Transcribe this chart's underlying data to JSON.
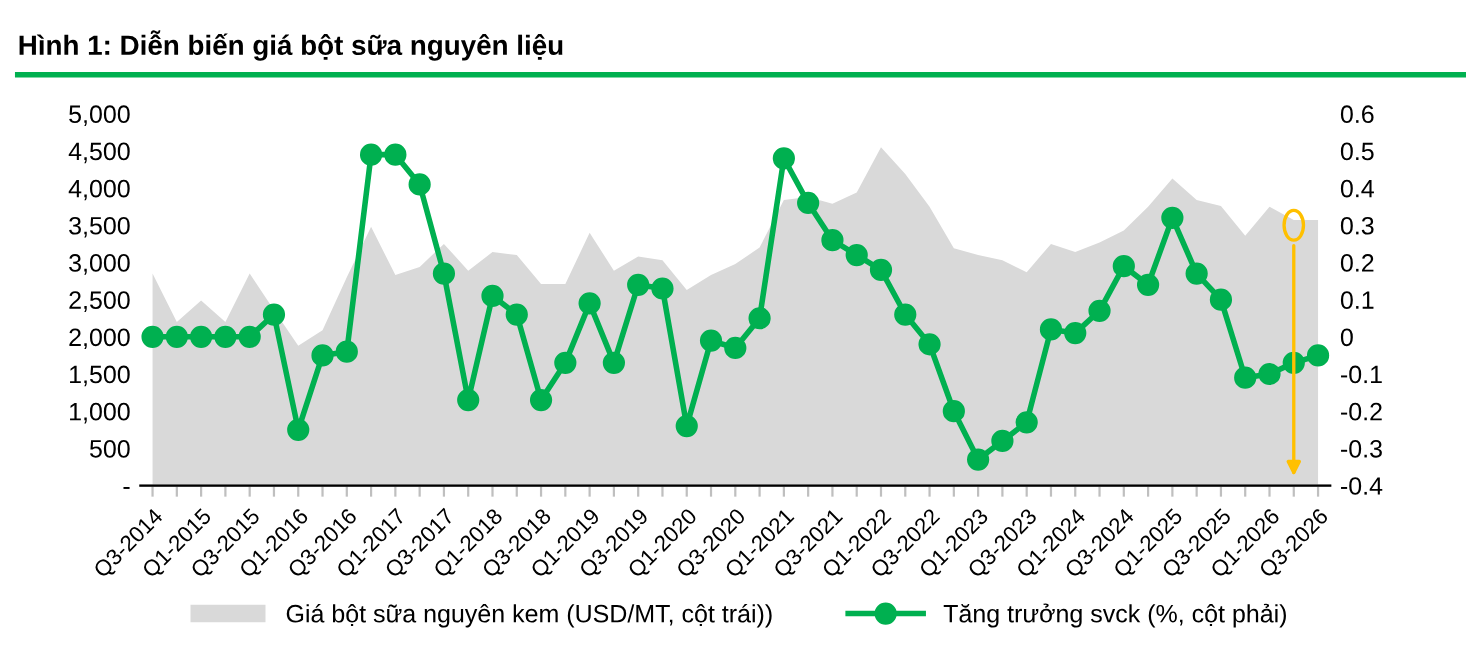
{
  "chart_data": {
    "type": "area",
    "title": "Hình 1: Diễn biến giá bột sữa nguyên liệu",
    "categories": [
      "Q3-2014",
      null,
      "Q1-2015",
      null,
      "Q3-2015",
      null,
      "Q1-2016",
      null,
      "Q3-2016",
      null,
      "Q1-2017",
      null,
      "Q3-2017",
      null,
      "Q1-2018",
      null,
      "Q3-2018",
      null,
      "Q1-2019",
      null,
      "Q3-2019",
      null,
      "Q1-2020",
      null,
      "Q3-2020",
      null,
      "Q1-2021",
      null,
      "Q3-2021",
      null,
      "Q1-2022",
      null,
      "Q3-2022",
      null,
      "Q1-2023",
      null,
      "Q3-2023",
      null,
      "Q1-2024",
      null,
      "Q3-2024",
      null,
      "Q1-2025",
      null,
      "Q3-2025",
      null,
      "Q1-2026",
      null,
      "Q3-2026"
    ],
    "series": [
      {
        "name": "Giá bột sữa nguyên kem (USD/MT, cột trái))",
        "color": "#d9d9d9",
        "values": [
          2850,
          2200,
          2490,
          2200,
          2850,
          2360,
          1880,
          2090,
          2800,
          3480,
          2830,
          2940,
          3250,
          2890,
          3140,
          3100,
          2710,
          2710,
          3400,
          2890,
          3080,
          3030,
          2630,
          2830,
          2980,
          3200,
          3840,
          3880,
          3790,
          3940,
          4550,
          4190,
          3750,
          3190,
          3100,
          3030,
          2870,
          3250,
          3140,
          3270,
          3430,
          3750,
          4130,
          3840,
          3760,
          3360,
          3750,
          3570,
          3570
        ]
      },
      {
        "name": "Tăng trưởng svck (%, cột phải)",
        "type": "line",
        "axis": "y2",
        "color": "#00b050",
        "marker": "circle",
        "line_style": "solid",
        "values": [
          0,
          0,
          0,
          0,
          0,
          0.06,
          -0.25,
          -0.05,
          -0.04,
          0.49,
          0.49,
          0.41,
          0.17,
          -0.17,
          0.11,
          0.06,
          -0.17,
          -0.07,
          0.09,
          -0.07,
          0.14,
          0.13,
          -0.24,
          -0.01,
          -0.03,
          0.05,
          0.48,
          0.36,
          0.26,
          0.22,
          0.18,
          0.06,
          -0.02,
          -0.2,
          -0.33,
          -0.28,
          -0.23,
          0.02,
          0.01,
          0.07,
          0.19,
          0.14,
          0.32,
          0.17,
          0.1,
          -0.11,
          -0.1,
          -0.07,
          -0.05
        ]
      }
    ],
    "ylim": [
      0,
      5000
    ],
    "yticks": [
      {
        "value": 0,
        "label": "-"
      },
      {
        "value": 500,
        "label": "500"
      },
      {
        "value": 1000,
        "label": "1,000"
      },
      {
        "value": 1500,
        "label": "1,500"
      },
      {
        "value": 2000,
        "label": "2,000"
      },
      {
        "value": 2500,
        "label": "2,500"
      },
      {
        "value": 3000,
        "label": "3,000"
      },
      {
        "value": 3500,
        "label": "3,500"
      },
      {
        "value": 4000,
        "label": "4,000"
      },
      {
        "value": 4500,
        "label": "4,500"
      },
      {
        "value": 5000,
        "label": "5,000"
      }
    ],
    "y2lim": [
      -0.4,
      0.6
    ],
    "y2ticks": [
      -0.4,
      -0.3,
      -0.2,
      -0.1,
      {
        "value": 0,
        "label": "0"
      },
      0.1,
      0.2,
      0.3,
      0.4,
      0.5,
      0.6
    ],
    "grid": false,
    "legend": "bottom"
  }
}
